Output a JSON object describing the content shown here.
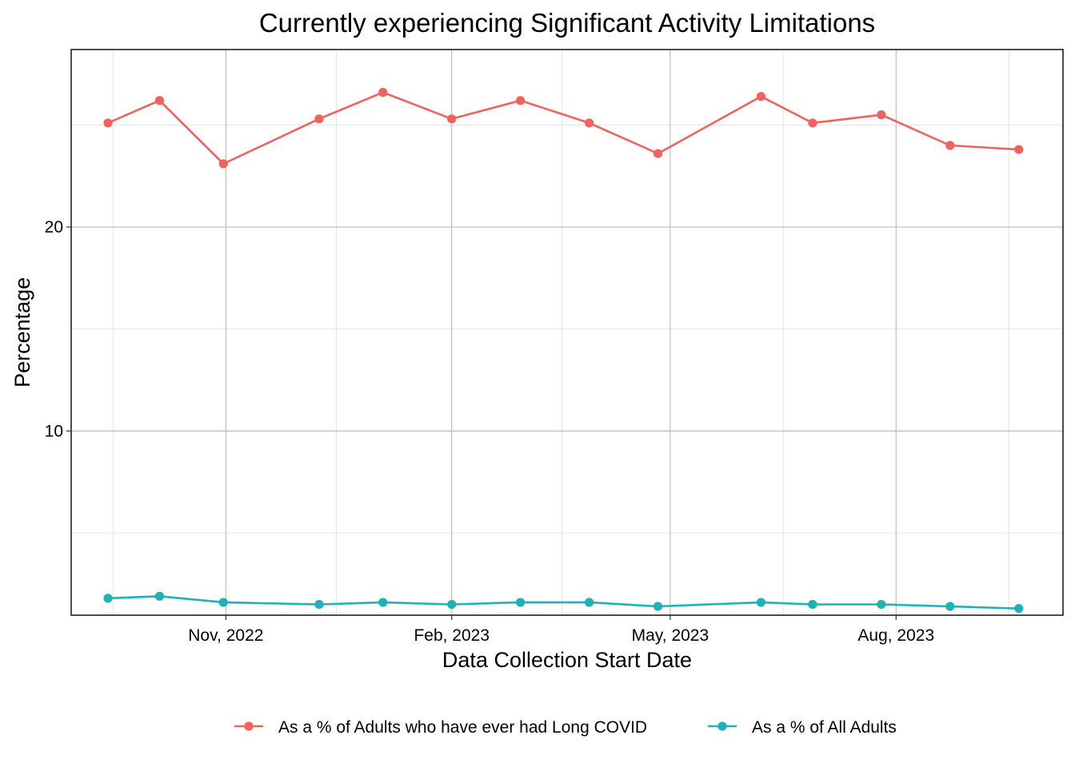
{
  "chart_data": {
    "type": "line",
    "title": "Currently experiencing Significant Activity Limitations",
    "xlabel": "Data Collection Start Date",
    "ylabel": "Percentage",
    "x": [
      "2022-09-14",
      "2022-10-05",
      "2022-10-31",
      "2022-12-09",
      "2023-01-04",
      "2023-02-01",
      "2023-03-01",
      "2023-03-29",
      "2023-04-26",
      "2023-06-07",
      "2023-06-28",
      "2023-07-26",
      "2023-08-23",
      "2023-09-20"
    ],
    "x_ticks": [
      {
        "date": "2022-11-01",
        "label": "Nov, 2022"
      },
      {
        "date": "2023-02-01",
        "label": "Feb, 2023"
      },
      {
        "date": "2023-05-01",
        "label": "May, 2023"
      },
      {
        "date": "2023-08-01",
        "label": "Aug, 2023"
      }
    ],
    "x_minor_ticks": [
      "2022-09-16",
      "2022-12-16",
      "2023-03-18",
      "2023-06-16",
      "2023-09-16"
    ],
    "xlim": [
      "2022-08-30",
      "2023-10-08"
    ],
    "y_ticks": [
      10,
      20
    ],
    "y_minor_ticks": [
      5,
      15,
      25
    ],
    "ylim": [
      0.97,
      28.7
    ],
    "grid": true,
    "legend_position": "bottom",
    "series": [
      {
        "name": "As a % of Adults who have ever had Long COVID",
        "color": "#f0625e",
        "values": [
          25.1,
          26.2,
          23.1,
          25.3,
          26.6,
          25.3,
          26.2,
          25.1,
          23.6,
          26.4,
          25.1,
          25.5,
          24.0,
          23.8
        ]
      },
      {
        "name": "As a % of All Adults",
        "color": "#1fb1b5",
        "values": [
          1.8,
          1.9,
          1.6,
          1.5,
          1.6,
          1.5,
          1.6,
          1.6,
          1.4,
          1.6,
          1.5,
          1.5,
          1.4,
          1.3
        ]
      }
    ]
  }
}
